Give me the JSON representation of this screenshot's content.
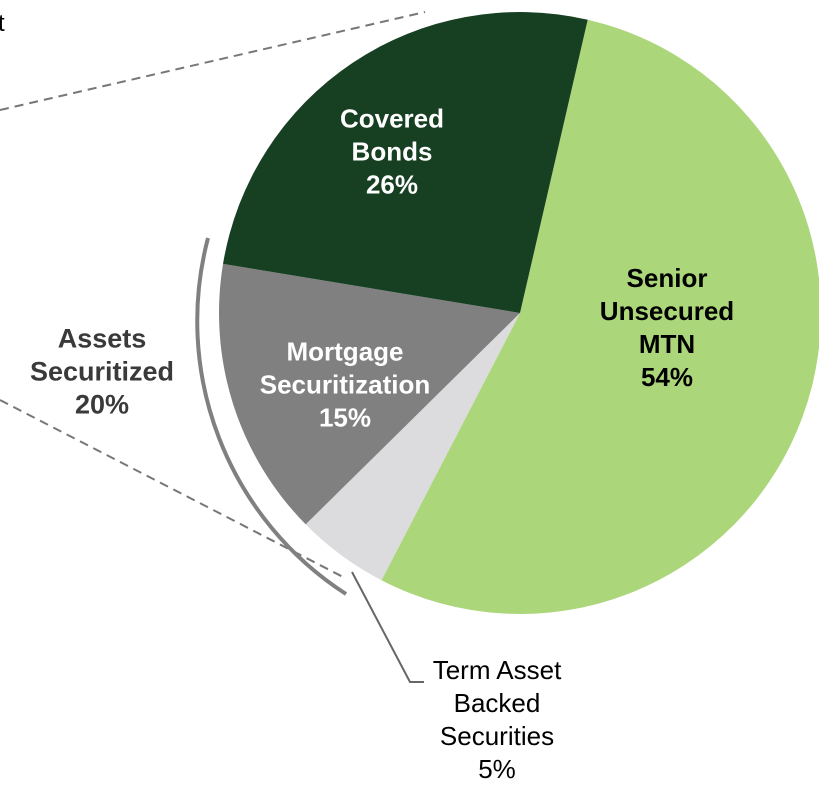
{
  "chart_data": {
    "type": "pie",
    "categories": [
      "Senior\nUnsecured\nMTN",
      "Term Asset\nBacked\nSecurities",
      "Mortgage\nSecuritization",
      "Covered\nBonds"
    ],
    "values": [
      54,
      5,
      15,
      26
    ],
    "value_labels": [
      "54%",
      "5%",
      "15%",
      "26%"
    ],
    "colors": [
      "#acd67a",
      "#dcdcde",
      "#808080",
      "#173f22"
    ],
    "annotations": [
      {
        "text": "Assets\nSecuritized\n20%"
      },
      {
        "text": "t"
      }
    ]
  }
}
